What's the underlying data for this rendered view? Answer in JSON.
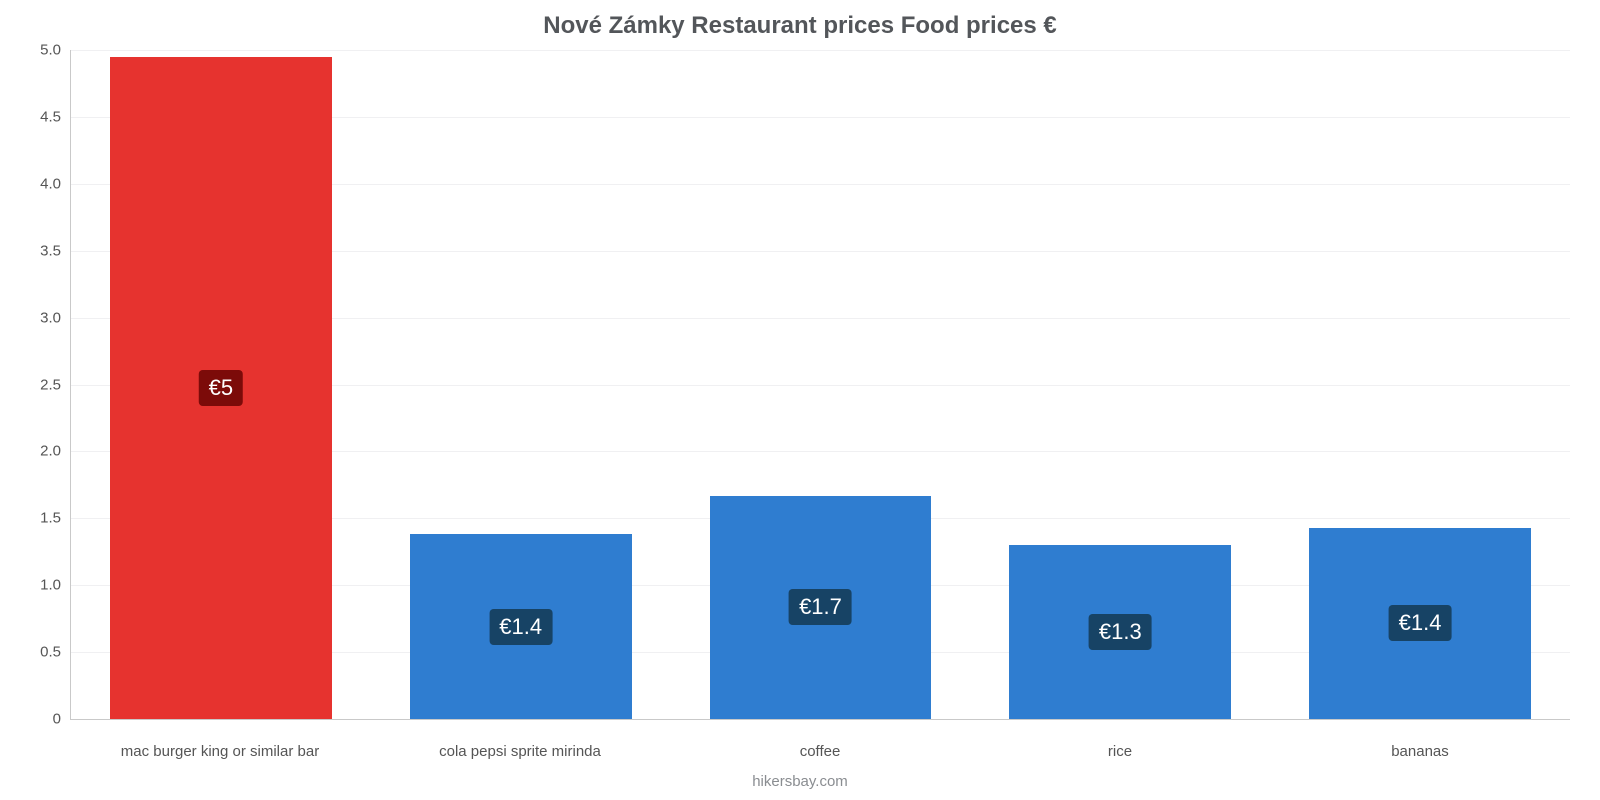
{
  "chart": {
    "type": "bar",
    "title": "Nové Zámky Restaurant prices Food prices €",
    "title_fontsize": 24,
    "title_color": "#53565a",
    "credit": "hikersbay.com",
    "credit_color": "#8a8d91",
    "background_color": "#ffffff",
    "grid_color": "#f0f0f2",
    "axis_color": "#c9c9c9",
    "label_color": "#555555",
    "label_fontsize": 15,
    "badge_fontsize": 22,
    "ylim": [
      0,
      5.0
    ],
    "ytick_step": 0.5,
    "yticks": [
      "0",
      "0.5",
      "1.0",
      "1.5",
      "2.0",
      "2.5",
      "3.0",
      "3.5",
      "4.0",
      "4.5",
      "5.0"
    ],
    "bar_width": 0.74,
    "categories": [
      "mac burger king or similar bar",
      "cola pepsi sprite mirinda",
      "coffee",
      "rice",
      "bananas"
    ],
    "values": [
      4.95,
      1.38,
      1.67,
      1.3,
      1.43
    ],
    "value_labels": [
      "€5",
      "€1.4",
      "€1.7",
      "€1.3",
      "€1.4"
    ],
    "bar_colors": [
      "#e6332f",
      "#2f7dd0",
      "#2f7dd0",
      "#2f7dd0",
      "#2f7dd0"
    ],
    "badge_bg_colors": [
      "#7c0b09",
      "#174365",
      "#174365",
      "#174365",
      "#174365"
    ],
    "badge_text_color": "#ffffff"
  }
}
